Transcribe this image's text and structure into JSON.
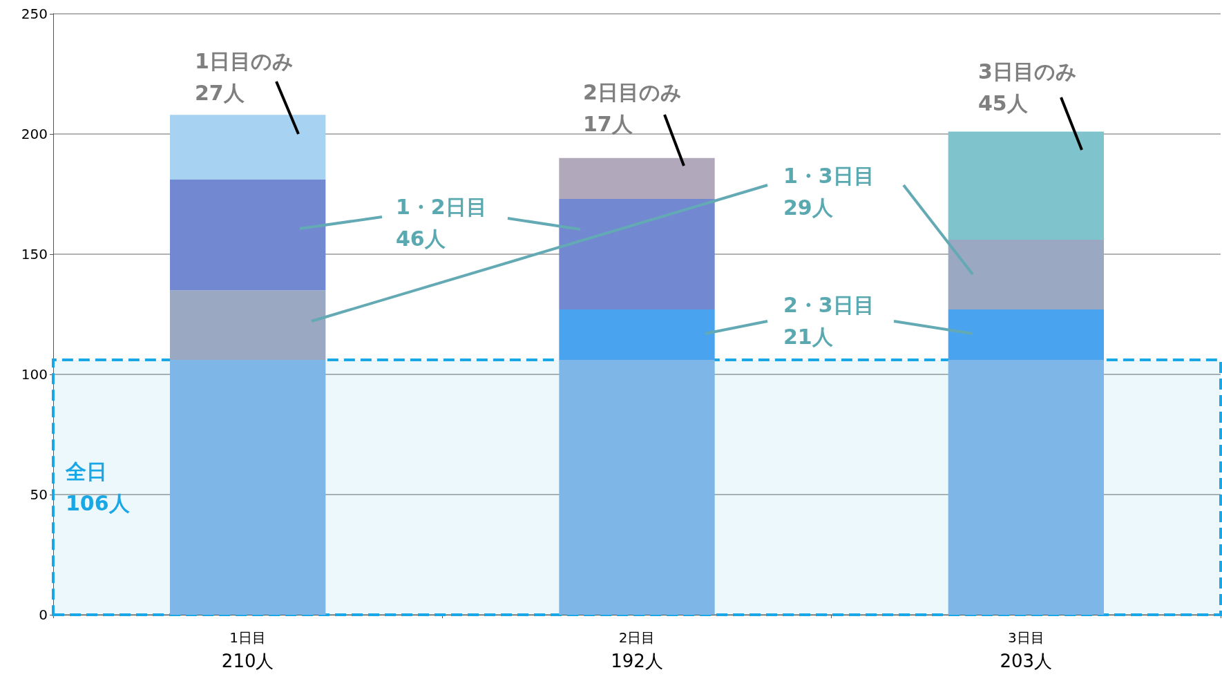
{
  "chart_data": {
    "type": "bar",
    "stacked": true,
    "categories": [
      "1日目",
      "2日目",
      "3日目"
    ],
    "totals": [
      "210人",
      "192人",
      "203人"
    ],
    "series": [
      {
        "color": "#7fb6e8",
        "values": [
          106,
          106,
          106
        ]
      },
      {
        "color": "#4aa3ee",
        "values": [
          null,
          21,
          21
        ]
      },
      {
        "color": "#9aa8c2",
        "values": [
          29,
          null,
          29
        ]
      },
      {
        "color": "#7289d2",
        "values": [
          46,
          46,
          null
        ]
      },
      {
        "colors": [
          "#a8d2f2",
          "#b2a8bc",
          "#7fc3cc"
        ],
        "values": [
          27,
          17,
          45
        ]
      }
    ],
    "ylim": [
      0,
      250
    ],
    "yticks": [
      0,
      50,
      100,
      150,
      200,
      250
    ],
    "grid": "y",
    "bands": [
      {
        "axis": "y",
        "from": 0,
        "to": 106,
        "label": "全日\n106人",
        "color": "#1aa7e6"
      }
    ],
    "annotations": [
      "1日目のみ\n27人",
      "2日目のみ\n17人",
      "3日目のみ\n45人",
      "1・2日目\n46人",
      "1・3日目\n29人",
      "2・3日目\n21人"
    ]
  }
}
